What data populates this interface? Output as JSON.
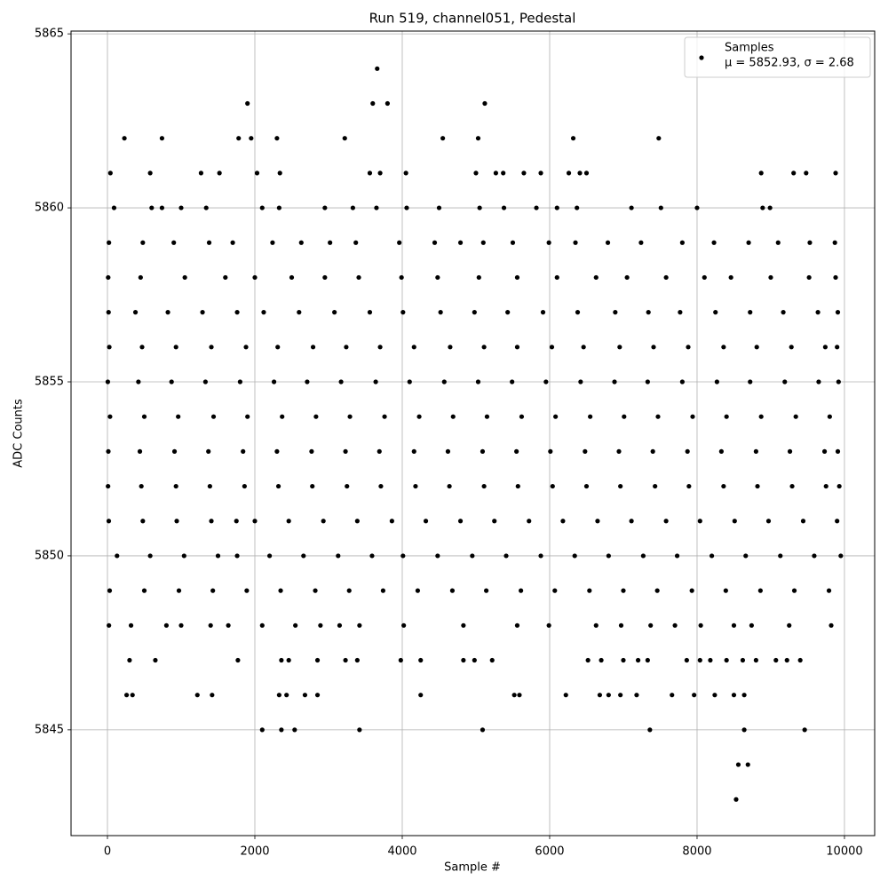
{
  "chart_data": {
    "type": "scatter",
    "title": "Run 519, channel051, Pedestal",
    "xlabel": "Sample #",
    "ylabel": "ADC Counts",
    "legend_note": "μ = 5852.93, σ = 2.68",
    "legend_position": "upper right",
    "grid": true,
    "xlim": [
      -494,
      10410
    ],
    "xticks": [
      0,
      2000,
      4000,
      6000,
      8000,
      10000
    ],
    "ylim": [
      5841.96,
      5865.08
    ],
    "yticks": [
      5845,
      5850,
      5855,
      5860,
      5865
    ],
    "x": [
      3660,
      1900,
      3600,
      3800,
      5120,
      230,
      740,
      1780,
      1950,
      2300,
      3220,
      4550,
      5030,
      6320,
      7480,
      40,
      580,
      1270,
      1520,
      2030,
      2340,
      3560,
      3700,
      4050,
      5000,
      5270,
      5370,
      5650,
      5880,
      6260,
      6410,
      6500,
      8870,
      9310,
      9480,
      9880,
      90,
      600,
      740,
      1000,
      1340,
      2100,
      2330,
      2950,
      3330,
      3650,
      4060,
      4500,
      5050,
      5380,
      5820,
      6100,
      6370,
      7110,
      7510,
      8000,
      8890,
      8990,
      20,
      480,
      900,
      1380,
      1700,
      2240,
      2630,
      3020,
      3370,
      3960,
      4440,
      4790,
      5100,
      5500,
      5990,
      6350,
      6790,
      7240,
      7800,
      8230,
      8700,
      9100,
      9530,
      9870,
      10,
      450,
      1050,
      1600,
      2000,
      2500,
      2950,
      3410,
      3990,
      4480,
      5040,
      5560,
      6100,
      6630,
      7050,
      7580,
      8100,
      8460,
      9000,
      9520,
      9880,
      15,
      380,
      820,
      1290,
      1760,
      2120,
      2600,
      3080,
      3560,
      4010,
      4520,
      4980,
      5430,
      5910,
      6380,
      6890,
      7340,
      7770,
      8250,
      8720,
      9170,
      9640,
      9910,
      25,
      470,
      930,
      1410,
      1880,
      2310,
      2790,
      3240,
      3700,
      4160,
      4650,
      5110,
      5560,
      6030,
      6460,
      6950,
      7410,
      7880,
      8360,
      8810,
      9280,
      9740,
      9900,
      5,
      420,
      870,
      1330,
      1800,
      2260,
      2710,
      3170,
      3640,
      4100,
      4570,
      5030,
      5490,
      5950,
      6420,
      6880,
      7330,
      7800,
      8270,
      8720,
      9190,
      9650,
      9920,
      35,
      500,
      960,
      1440,
      1900,
      2370,
      2830,
      3290,
      3760,
      4230,
      4690,
      5150,
      5620,
      6080,
      6550,
      7010,
      7470,
      7940,
      8400,
      8870,
      9340,
      9800,
      12,
      440,
      910,
      1370,
      1840,
      2300,
      2770,
      3230,
      3690,
      4160,
      4620,
      5090,
      5550,
      6010,
      6480,
      6940,
      7400,
      7870,
      8330,
      8800,
      9260,
      9730,
      9910,
      8,
      460,
      930,
      1390,
      1860,
      2320,
      2780,
      3250,
      3710,
      4180,
      4640,
      5110,
      5570,
      6040,
      6500,
      6960,
      7430,
      7890,
      8360,
      8820,
      9290,
      9750,
      9930,
      18,
      480,
      940,
      1410,
      1750,
      2000,
      2460,
      2930,
      3390,
      3860,
      4320,
      4790,
      5250,
      5720,
      6180,
      6650,
      7110,
      7580,
      8040,
      8510,
      8970,
      9440,
      9900,
      130,
      580,
      1040,
      1500,
      1760,
      2200,
      2660,
      3130,
      3590,
      4010,
      4480,
      4950,
      5410,
      5880,
      6340,
      6800,
      7270,
      7730,
      8200,
      8660,
      9130,
      9590,
      9950,
      30,
      500,
      970,
      1430,
      1890,
      2350,
      2820,
      3280,
      3740,
      4210,
      4680,
      5140,
      5610,
      6070,
      6540,
      7000,
      7460,
      7930,
      8390,
      8860,
      9320,
      9790,
      20,
      320,
      800,
      1000,
      1400,
      1640,
      2100,
      2550,
      2890,
      3150,
      3420,
      4020,
      4830,
      5560,
      5990,
      6630,
      6970,
      7370,
      7700,
      8050,
      8500,
      8740,
      9250,
      9820,
      300,
      650,
      1770,
      2360,
      2460,
      2850,
      3230,
      3390,
      3980,
      4250,
      4830,
      4980,
      5220,
      6520,
      6700,
      7000,
      7200,
      7330,
      7860,
      8040,
      8180,
      8400,
      8620,
      8800,
      9070,
      9220,
      9400,
      260,
      340,
      1220,
      1420,
      2330,
      2430,
      2680,
      2850,
      4250,
      5520,
      5590,
      6220,
      6680,
      6800,
      6960,
      7180,
      7660,
      7960,
      8240,
      8500,
      8640,
      2100,
      2360,
      2540,
      3420,
      5090,
      7360,
      8640,
      9460,
      8560,
      8690,
      8530
    ],
    "series": [
      {
        "name": "Samples",
        "color": "#000000",
        "values": [
          5864,
          5863,
          5863,
          5863,
          5863,
          5862,
          5862,
          5862,
          5862,
          5862,
          5862,
          5862,
          5862,
          5862,
          5862,
          5861,
          5861,
          5861,
          5861,
          5861,
          5861,
          5861,
          5861,
          5861,
          5861,
          5861,
          5861,
          5861,
          5861,
          5861,
          5861,
          5861,
          5861,
          5861,
          5861,
          5861,
          5860,
          5860,
          5860,
          5860,
          5860,
          5860,
          5860,
          5860,
          5860,
          5860,
          5860,
          5860,
          5860,
          5860,
          5860,
          5860,
          5860,
          5860,
          5860,
          5860,
          5860,
          5860,
          5859,
          5859,
          5859,
          5859,
          5859,
          5859,
          5859,
          5859,
          5859,
          5859,
          5859,
          5859,
          5859,
          5859,
          5859,
          5859,
          5859,
          5859,
          5859,
          5859,
          5859,
          5859,
          5859,
          5859,
          5858,
          5858,
          5858,
          5858,
          5858,
          5858,
          5858,
          5858,
          5858,
          5858,
          5858,
          5858,
          5858,
          5858,
          5858,
          5858,
          5858,
          5858,
          5858,
          5858,
          5858,
          5857,
          5857,
          5857,
          5857,
          5857,
          5857,
          5857,
          5857,
          5857,
          5857,
          5857,
          5857,
          5857,
          5857,
          5857,
          5857,
          5857,
          5857,
          5857,
          5857,
          5857,
          5857,
          5857,
          5856,
          5856,
          5856,
          5856,
          5856,
          5856,
          5856,
          5856,
          5856,
          5856,
          5856,
          5856,
          5856,
          5856,
          5856,
          5856,
          5856,
          5856,
          5856,
          5856,
          5856,
          5856,
          5856,
          5855,
          5855,
          5855,
          5855,
          5855,
          5855,
          5855,
          5855,
          5855,
          5855,
          5855,
          5855,
          5855,
          5855,
          5855,
          5855,
          5855,
          5855,
          5855,
          5855,
          5855,
          5855,
          5855,
          5854,
          5854,
          5854,
          5854,
          5854,
          5854,
          5854,
          5854,
          5854,
          5854,
          5854,
          5854,
          5854,
          5854,
          5854,
          5854,
          5854,
          5854,
          5854,
          5854,
          5854,
          5854,
          5853,
          5853,
          5853,
          5853,
          5853,
          5853,
          5853,
          5853,
          5853,
          5853,
          5853,
          5853,
          5853,
          5853,
          5853,
          5853,
          5853,
          5853,
          5853,
          5853,
          5853,
          5853,
          5853,
          5852,
          5852,
          5852,
          5852,
          5852,
          5852,
          5852,
          5852,
          5852,
          5852,
          5852,
          5852,
          5852,
          5852,
          5852,
          5852,
          5852,
          5852,
          5852,
          5852,
          5852,
          5852,
          5852,
          5851,
          5851,
          5851,
          5851,
          5851,
          5851,
          5851,
          5851,
          5851,
          5851,
          5851,
          5851,
          5851,
          5851,
          5851,
          5851,
          5851,
          5851,
          5851,
          5851,
          5851,
          5851,
          5851,
          5850,
          5850,
          5850,
          5850,
          5850,
          5850,
          5850,
          5850,
          5850,
          5850,
          5850,
          5850,
          5850,
          5850,
          5850,
          5850,
          5850,
          5850,
          5850,
          5850,
          5850,
          5850,
          5850,
          5849,
          5849,
          5849,
          5849,
          5849,
          5849,
          5849,
          5849,
          5849,
          5849,
          5849,
          5849,
          5849,
          5849,
          5849,
          5849,
          5849,
          5849,
          5849,
          5849,
          5849,
          5849,
          5848,
          5848,
          5848,
          5848,
          5848,
          5848,
          5848,
          5848,
          5848,
          5848,
          5848,
          5848,
          5848,
          5848,
          5848,
          5848,
          5848,
          5848,
          5848,
          5848,
          5848,
          5848,
          5848,
          5848,
          5847,
          5847,
          5847,
          5847,
          5847,
          5847,
          5847,
          5847,
          5847,
          5847,
          5847,
          5847,
          5847,
          5847,
          5847,
          5847,
          5847,
          5847,
          5847,
          5847,
          5847,
          5847,
          5847,
          5847,
          5847,
          5847,
          5847,
          5846,
          5846,
          5846,
          5846,
          5846,
          5846,
          5846,
          5846,
          5846,
          5846,
          5846,
          5846,
          5846,
          5846,
          5846,
          5846,
          5846,
          5846,
          5846,
          5846,
          5846,
          5845,
          5845,
          5845,
          5845,
          5845,
          5845,
          5845,
          5845,
          5844,
          5844,
          5843
        ]
      }
    ]
  }
}
